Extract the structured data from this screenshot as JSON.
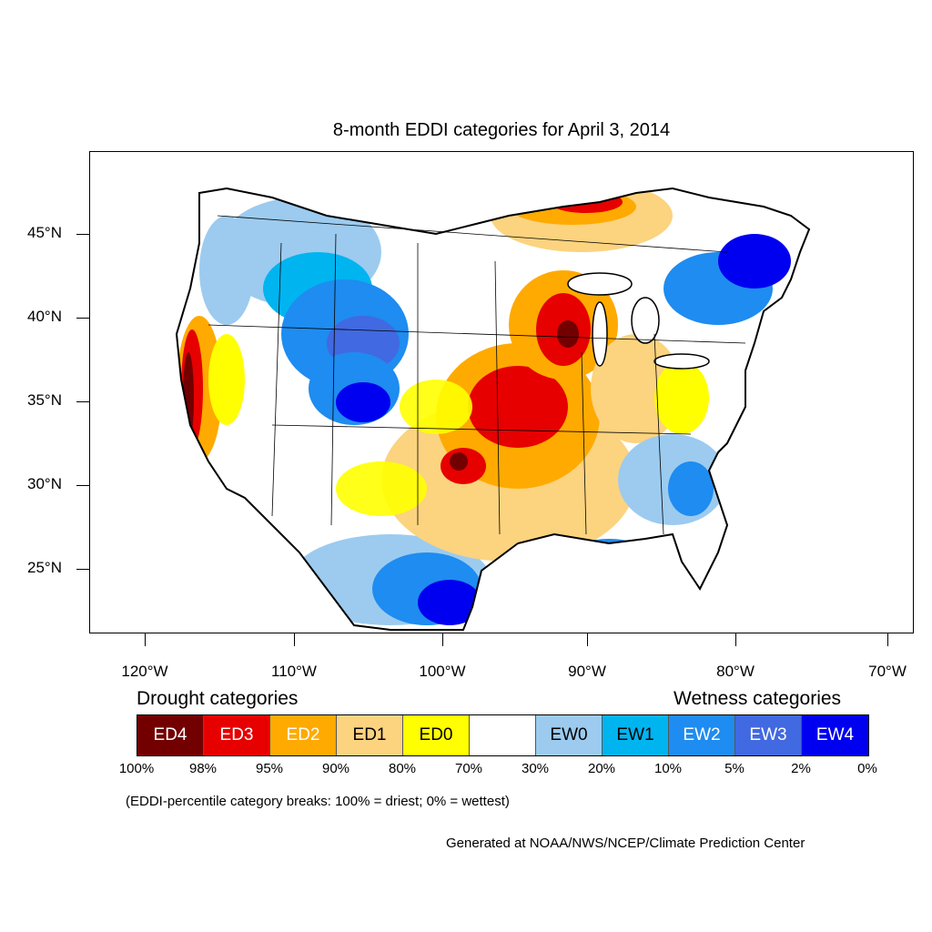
{
  "title": "8-month EDDI categories for April 3, 2014",
  "axes": {
    "lat_labels": [
      "45°N",
      "40°N",
      "35°N",
      "30°N",
      "25°N"
    ],
    "lon_labels": [
      "120°W",
      "110°W",
      "100°W",
      "90°W",
      "80°W",
      "70°W"
    ]
  },
  "legend": {
    "drought_heading": "Drought categories",
    "wetness_heading": "Wetness categories",
    "categories": [
      {
        "label": "ED4",
        "color": "#730000",
        "text_color": "#ffffff"
      },
      {
        "label": "ED3",
        "color": "#e60000",
        "text_color": "#ffffff"
      },
      {
        "label": "ED2",
        "color": "#ffaa00",
        "text_color": "#ffffff"
      },
      {
        "label": "ED1",
        "color": "#fcd37f",
        "text_color": "#000000"
      },
      {
        "label": "ED0",
        "color": "#ffff00",
        "text_color": "#000000"
      },
      {
        "label": "",
        "color": "#ffffff",
        "text_color": "#000000"
      },
      {
        "label": "EW0",
        "color": "#9ccbef",
        "text_color": "#000000"
      },
      {
        "label": "EW1",
        "color": "#00b4f0",
        "text_color": "#000000"
      },
      {
        "label": "EW2",
        "color": "#1e8cf0",
        "text_color": "#ffffff"
      },
      {
        "label": "EW3",
        "color": "#4169e1",
        "text_color": "#ffffff"
      },
      {
        "label": "EW4",
        "color": "#0000f0",
        "text_color": "#ffffff"
      }
    ],
    "breaks": [
      "100%",
      "98%",
      "95%",
      "90%",
      "80%",
      "70%",
      "30%",
      "20%",
      "10%",
      "5%",
      "2%",
      "0%"
    ]
  },
  "note": "(EDDI-percentile category breaks: 100% = driest; 0% = wettest)",
  "credit": "Generated at NOAA/NWS/NCEP/Climate Prediction Center"
}
